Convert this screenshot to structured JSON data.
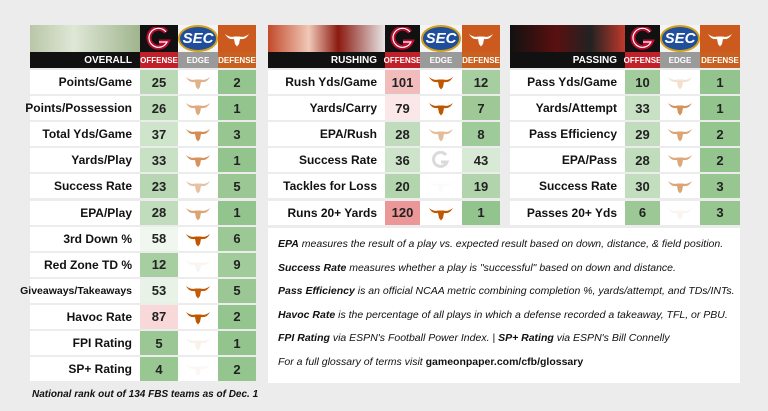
{
  "panels": [
    {
      "title": "OVERALL",
      "columns": [
        "OFFENSE",
        "EDGE",
        "DEFENSE"
      ],
      "rows": [
        {
          "label": "Points/Game",
          "offense": 25,
          "defense": 2
        },
        {
          "label": "Points/Possession",
          "offense": 26,
          "defense": 1
        },
        {
          "label": "Total Yds/Game",
          "offense": 37,
          "defense": 3
        },
        {
          "label": "Yards/Play",
          "offense": 33,
          "defense": 1
        },
        {
          "label": "Success Rate",
          "offense": 23,
          "defense": 5
        },
        {
          "label": "EPA/Play",
          "offense": 28,
          "defense": 1
        },
        {
          "label": "3rd Down %",
          "offense": 58,
          "defense": 6
        },
        {
          "label": "Red Zone TD %",
          "offense": 12,
          "defense": 9
        },
        {
          "label": "Giveaways/Takeaways",
          "offense": 53,
          "defense": 5
        },
        {
          "label": "Havoc Rate",
          "offense": 87,
          "defense": 2
        },
        {
          "label": "FPI Rating",
          "offense": 5,
          "defense": 1
        },
        {
          "label": "SP+ Rating",
          "offense": 4,
          "defense": 2
        }
      ]
    },
    {
      "title": "RUSHING",
      "columns": [
        "OFFENSE",
        "EDGE",
        "DEFENSE"
      ],
      "rows": [
        {
          "label": "Rush Yds/Game",
          "offense": 101,
          "defense": 12
        },
        {
          "label": "Yards/Carry",
          "offense": 79,
          "defense": 7
        },
        {
          "label": "EPA/Rush",
          "offense": 28,
          "defense": 8
        },
        {
          "label": "Success Rate",
          "offense": 36,
          "defense": 43
        },
        {
          "label": "Tackles for Loss",
          "offense": 20,
          "defense": 19
        },
        {
          "label": "Runs 20+ Yards",
          "offense": 120,
          "defense": 1
        }
      ]
    },
    {
      "title": "PASSING",
      "columns": [
        "OFFENSE",
        "EDGE",
        "DEFENSE"
      ],
      "rows": [
        {
          "label": "Pass Yds/Game",
          "offense": 10,
          "defense": 1
        },
        {
          "label": "Yards/Attempt",
          "offense": 33,
          "defense": 1
        },
        {
          "label": "Pass Efficiency",
          "offense": 29,
          "defense": 2
        },
        {
          "label": "EPA/Pass",
          "offense": 28,
          "defense": 2
        },
        {
          "label": "Success Rate",
          "offense": 30,
          "defense": 3
        },
        {
          "label": "Passes 20+ Yds",
          "offense": 6,
          "defense": 3
        }
      ]
    }
  ],
  "logo_text": "SEC",
  "notes": [
    {
      "parts": [
        {
          "b": "EPA"
        },
        {
          "t": " measures the result of a play vs. expected result based on down, distance, & field position."
        }
      ]
    },
    {
      "parts": [
        {
          "b": "Success Rate"
        },
        {
          "t": " measures whether a play is \"successful\" based on down and distance."
        }
      ]
    },
    {
      "parts": [
        {
          "b": "Pass Efficiency"
        },
        {
          "t": " is an official NCAA metric combining completion %, yards/attempt, and TDs/INTs."
        }
      ]
    },
    {
      "parts": [
        {
          "b": "Havoc Rate"
        },
        {
          "t": " is the percentage of all plays in which a defense recorded a takeaway, TFL, or PBU."
        }
      ]
    },
    {
      "parts": [
        {
          "b": "FPI Rating"
        },
        {
          "t": " via ESPN's Football Power Index.  |  "
        },
        {
          "b": "SP+ Rating"
        },
        {
          "t": " via ESPN's Bill Connelly"
        }
      ]
    },
    {
      "parts": [
        {
          "t": "For a full glossary of terms visit "
        },
        {
          "u": "gameonpaper.com/cfb/glossary"
        }
      ]
    }
  ],
  "footer": "National rank out of 134 FBS teams as of Dec. 1"
}
